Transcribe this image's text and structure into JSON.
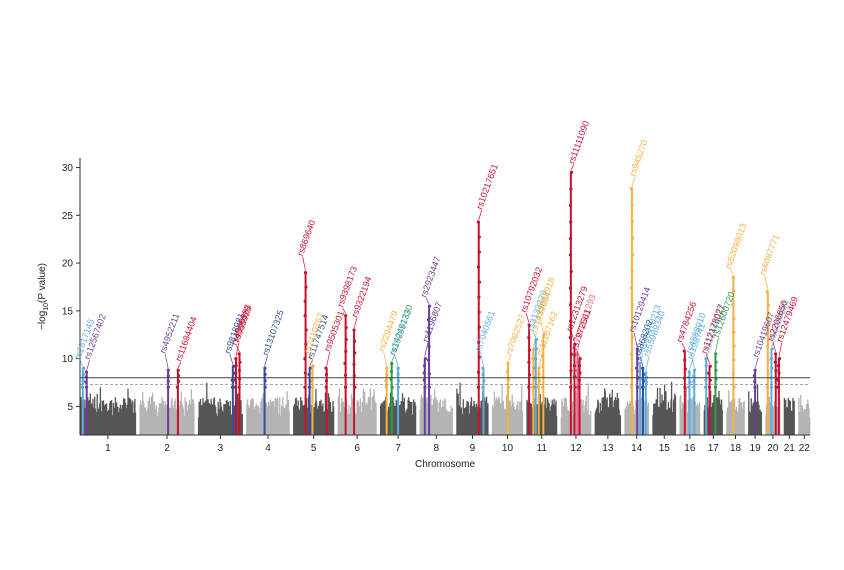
{
  "chart_data": {
    "type": "scatter",
    "subtype": "manhattan",
    "xlabel": "Chromosome",
    "ylabel": {
      "prefix": "−log",
      "sub": "10",
      "suffix": "(P value)"
    },
    "ylim": [
      2,
      31
    ],
    "yticks": [
      5,
      10,
      15,
      20,
      25,
      30
    ],
    "genome_wide_threshold": 8.0,
    "suggestive_threshold": 7.3,
    "colors": {
      "chrom_dark": "#555555",
      "chrom_light": "#b4b4b4",
      "red": "#c8102e",
      "orange": "#f5b041",
      "blue": "#2e4ea3",
      "purple": "#6a3d9a",
      "lightblue": "#5dade2",
      "green": "#2e9e44",
      "pink": "#e86b8a"
    },
    "chromosomes": [
      "1",
      "2",
      "3",
      "4",
      "5",
      "6",
      "7",
      "8",
      "9",
      "10",
      "11",
      "12",
      "13",
      "14",
      "15",
      "16",
      "17",
      "18",
      "19",
      "20",
      "21",
      "22"
    ],
    "chromosome_sizes": [
      249,
      243,
      198,
      191,
      181,
      171,
      159,
      146,
      141,
      136,
      135,
      134,
      115,
      107,
      103,
      90,
      83,
      80,
      59,
      64,
      47,
      51
    ],
    "signals": [
      {
        "snp": "rs2817145",
        "chrom": 1,
        "pos": 0.05,
        "peak": 9.0,
        "color": "lightblue"
      },
      {
        "snp": "rs12567402",
        "chrom": 1,
        "pos": 0.12,
        "peak": 8.6,
        "color": "purple"
      },
      {
        "snp": "rs4952211",
        "chrom": 2,
        "pos": 0.52,
        "peak": 8.8,
        "color": "purple"
      },
      {
        "snp": "rs11684404",
        "chrom": 2,
        "pos": 0.7,
        "peak": 8.8,
        "color": "red"
      },
      {
        "snp": "rs9818981",
        "chrom": 3,
        "pos": 0.78,
        "peak": 9.2,
        "color": "blue"
      },
      {
        "snp": "rs555925",
        "chrom": 3,
        "pos": 0.85,
        "peak": 10.0,
        "color": "red"
      },
      {
        "snp": "rs4396983",
        "chrom": 3,
        "pos": 0.93,
        "peak": 10.5,
        "color": "red"
      },
      {
        "snp": "rs13107325",
        "chrom": 4,
        "pos": 0.42,
        "peak": 9.0,
        "color": "blue"
      },
      {
        "snp": "rs869640",
        "chrom": 5,
        "pos": 0.3,
        "peak": 19.0,
        "color": "red"
      },
      {
        "snp": "rs11747514",
        "chrom": 5,
        "pos": 0.4,
        "peak": 9.0,
        "color": "blue"
      },
      {
        "snp": "rs2410767",
        "chrom": 5,
        "pos": 0.47,
        "peak": 9.2,
        "color": "orange"
      },
      {
        "snp": "rs9505301",
        "chrom": 5,
        "pos": 0.82,
        "peak": 9.0,
        "color": "red"
      },
      {
        "snp": "rs9398173",
        "chrom": 6,
        "pos": 0.2,
        "peak": 14.5,
        "color": "red"
      },
      {
        "snp": "rs9322194",
        "chrom": 6,
        "pos": 0.42,
        "peak": 13.0,
        "color": "red"
      },
      {
        "snp": "rs2294479",
        "chrom": 7,
        "pos": 0.18,
        "peak": 9.0,
        "color": "orange"
      },
      {
        "snp": "rs142461330",
        "chrom": 7,
        "pos": 0.32,
        "peak": 9.5,
        "color": "green"
      },
      {
        "snp": "rs35053773",
        "chrom": 7,
        "pos": 0.5,
        "peak": 9.0,
        "color": "lightblue"
      },
      {
        "snp": "rs1196807",
        "chrom": 8,
        "pos": 0.15,
        "peak": 10.0,
        "color": "purple"
      },
      {
        "snp": "rs2923447",
        "chrom": 8,
        "pos": 0.28,
        "peak": 15.5,
        "color": "purple"
      },
      {
        "snp": "rs10217651",
        "chrom": 9,
        "pos": 0.7,
        "peak": 24.3,
        "color": "red"
      },
      {
        "snp": "rs7040561",
        "chrom": 9,
        "pos": 0.85,
        "peak": 9.0,
        "color": "lightblue"
      },
      {
        "snp": "rs7082527",
        "chrom": 10,
        "pos": 0.52,
        "peak": 9.5,
        "color": "orange"
      },
      {
        "snp": "rs10792032",
        "chrom": 11,
        "pos": 0.08,
        "peak": 13.5,
        "color": "red"
      },
      {
        "snp": "rs1432054",
        "chrom": 11,
        "pos": 0.22,
        "peak": 11.0,
        "color": "orange"
      },
      {
        "snp": "rs3133370",
        "chrom": 11,
        "pos": 0.3,
        "peak": 12.0,
        "color": "lightblue"
      },
      {
        "snp": "rs11187162",
        "chrom": 11,
        "pos": 0.4,
        "peak": 9.0,
        "color": "orange"
      },
      {
        "snp": "rs3002918",
        "chrom": 11,
        "pos": 0.55,
        "peak": 12.5,
        "color": "orange"
      },
      {
        "snp": "rs11111090",
        "chrom": 12,
        "pos": 0.33,
        "peak": 29.5,
        "color": "red"
      },
      {
        "snp": "rs12313279",
        "chrom": 12,
        "pos": 0.45,
        "peak": 11.5,
        "color": "red"
      },
      {
        "snp": "rs11111293",
        "chrom": 12,
        "pos": 0.55,
        "peak": 10.5,
        "color": "pink"
      },
      {
        "snp": "rs7972561",
        "chrom": 12,
        "pos": 0.62,
        "peak": 10.0,
        "color": "red"
      },
      {
        "snp": "rs945270",
        "chrom": 14,
        "pos": 0.3,
        "peak": 27.8,
        "color": "orange"
      },
      {
        "snp": "rs10129414",
        "chrom": 14,
        "pos": 0.52,
        "peak": 11.0,
        "color": "purple"
      },
      {
        "snp": "rs148470213",
        "chrom": 14,
        "pos": 0.64,
        "peak": 9.5,
        "color": "lightblue"
      },
      {
        "snp": "rs868202",
        "chrom": 14,
        "pos": 0.76,
        "peak": 9.0,
        "color": "blue"
      },
      {
        "snp": "rs55989340",
        "chrom": 14,
        "pos": 0.88,
        "peak": 8.5,
        "color": "lightblue"
      },
      {
        "snp": "rs4784256",
        "chrom": 16,
        "pos": 0.25,
        "peak": 10.8,
        "color": "red"
      },
      {
        "snp": "rs198741",
        "chrom": 16,
        "pos": 0.48,
        "peak": 8.6,
        "color": "lightblue"
      },
      {
        "snp": "rs4888010",
        "chrom": 16,
        "pos": 0.72,
        "peak": 8.8,
        "color": "lightblue"
      },
      {
        "snp": "rs12445022",
        "chrom": 17,
        "pos": 0.12,
        "peak": 10.0,
        "color": "lightblue"
      },
      {
        "snp": "rs112178027",
        "chrom": 17,
        "pos": 0.3,
        "peak": 9.2,
        "color": "red"
      },
      {
        "snp": "rs12600720",
        "chrom": 17,
        "pos": 0.62,
        "peak": 10.5,
        "color": "green"
      },
      {
        "snp": "rs62098013",
        "chrom": 18,
        "pos": 0.38,
        "peak": 18.5,
        "color": "orange"
      },
      {
        "snp": "rs10419607",
        "chrom": 19,
        "pos": 0.5,
        "peak": 8.8,
        "color": "purple"
      },
      {
        "snp": "rs6087771",
        "chrom": 20,
        "pos": 0.15,
        "peak": 17.0,
        "color": "orange"
      },
      {
        "snp": "rs6060983",
        "chrom": 20,
        "pos": 0.4,
        "peak": 11.0,
        "color": "lightblue"
      },
      {
        "snp": "rs2206656",
        "chrom": 20,
        "pos": 0.7,
        "peak": 10.5,
        "color": "red"
      },
      {
        "snp": "rs12479469",
        "chrom": 20,
        "pos": 0.92,
        "peak": 10.0,
        "color": "red"
      }
    ]
  }
}
